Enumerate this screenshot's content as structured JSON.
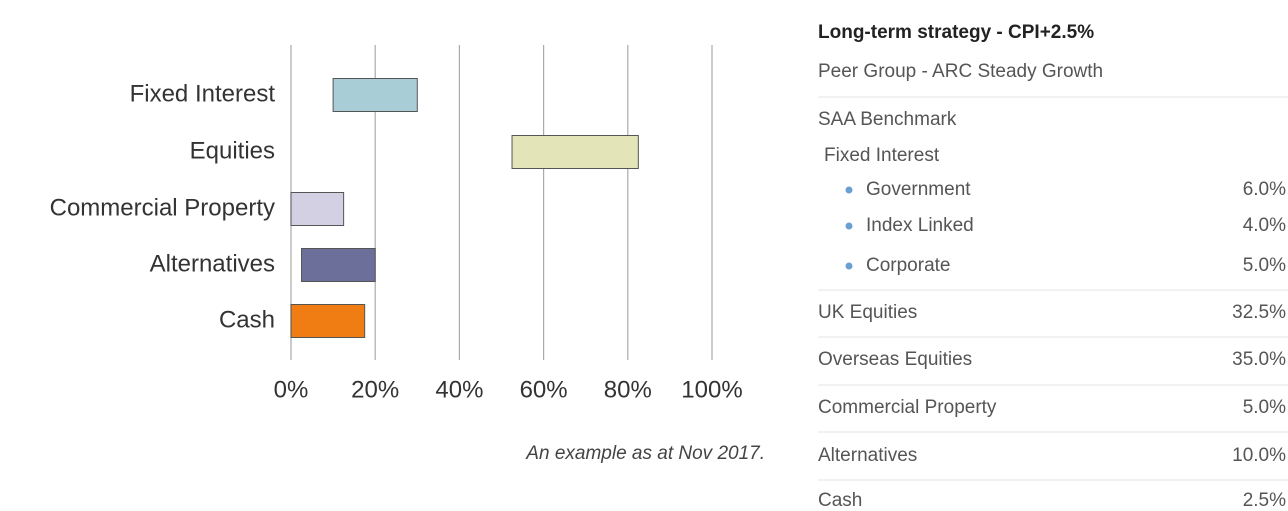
{
  "chart_data": {
    "type": "range-bar",
    "categories": [
      "Fixed Interest",
      "Equities",
      "Commercial Property",
      "Alternatives",
      "Cash"
    ],
    "ranges": [
      [
        10,
        30
      ],
      [
        52.5,
        82.5
      ],
      [
        0,
        12.5
      ],
      [
        2.5,
        20
      ],
      [
        0,
        17.5
      ]
    ],
    "colors": [
      "#a9cdd6",
      "#e3e4b8",
      "#d2d0e2",
      "#6c6f9a",
      "#f07c14"
    ],
    "xlim": [
      0,
      100
    ],
    "xticks": [
      {
        "value": 0,
        "label": "0%"
      },
      {
        "value": 20,
        "label": "20%"
      },
      {
        "value": 40,
        "label": "40%"
      },
      {
        "value": 60,
        "label": "60%"
      },
      {
        "value": 80,
        "label": "80%"
      },
      {
        "value": 100,
        "label": "100%"
      }
    ],
    "grid": true,
    "caption": "An example as at Nov 2017."
  },
  "panel": {
    "title": "Long-term strategy - CPI+2.5%",
    "rows": [
      {
        "label": "Peer Group - ARC Steady Growth"
      },
      {
        "label": "SAA Benchmark"
      },
      {
        "label": "Fixed Interest"
      },
      {
        "label": "Government",
        "value": "6.0%"
      },
      {
        "label": "Index Linked",
        "value": "4.0%"
      },
      {
        "label": "Corporate",
        "value": "5.0%"
      },
      {
        "label": "UK Equities",
        "value": "32.5%"
      },
      {
        "label": "Overseas Equities",
        "value": "35.0%"
      },
      {
        "label": "Commercial Property",
        "value": "5.0%"
      },
      {
        "label": "Alternatives",
        "value": "10.0%"
      },
      {
        "label": "Cash",
        "value": "2.5%"
      }
    ]
  }
}
